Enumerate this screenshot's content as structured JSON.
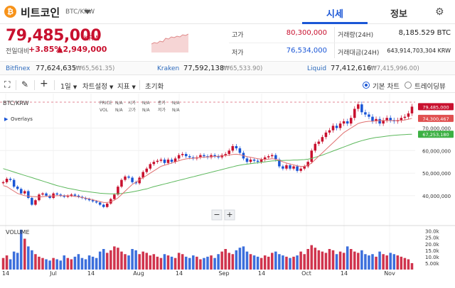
{
  "header": {
    "coin_symbol_glyph": "₿",
    "coin_name": "비트코인",
    "coin_pair": "BTC/KRW",
    "tabs": [
      {
        "label": "시세",
        "active": true
      },
      {
        "label": "정보",
        "active": false
      }
    ],
    "accent": "#1a56d6"
  },
  "summary": {
    "price": "79,485,000",
    "unit": "KRW",
    "change_label": "전일대비",
    "change_pct": "+3.85%",
    "change_abs": "▲2,949,000",
    "up_color": "#c8102e",
    "down_color": "#1a56d6",
    "stats": [
      {
        "label": "고가",
        "value": "80,300,000",
        "color": "#c8102e"
      },
      {
        "label": "저가",
        "value": "76,534,000",
        "color": "#1a56d6"
      },
      {
        "label": "거래량(24H)",
        "value": "8,185.529 BTC",
        "color": "#222"
      },
      {
        "label": "거래대금(24H)",
        "value": "643,914,703,304 KRW",
        "color": "#222"
      }
    ]
  },
  "exchanges": [
    {
      "name": "Bitfinex",
      "value": "77,624,635",
      "krw": "(₩65,561.35)"
    },
    {
      "name": "Kraken",
      "value": "77,592,138",
      "krw": "(₩65,533.90)"
    },
    {
      "name": "Liquid",
      "value": "77,412,616",
      "krw": "(₩7,415,996.00)"
    }
  ],
  "toolbar": {
    "interval": "1일",
    "settings": "차트설정",
    "indicators": "지표",
    "reset": "초기화",
    "modes": [
      {
        "label": "기본 차트",
        "selected": true
      },
      {
        "label": "트레이딩뷰",
        "selected": false
      }
    ]
  },
  "chart": {
    "symbol": "BTC/KRW",
    "overlays_label": "Overlays",
    "ohlc": {
      "price_label": "PRICE",
      "price": "N/A",
      "open_label": "시가",
      "open": "N/A",
      "close_label": "종가",
      "close": "N/A",
      "vol_label": "VOL",
      "vol": "N/A",
      "high_label": "고가",
      "high": "N/A",
      "low_label": "저가",
      "low": "N/A"
    },
    "volume_label": "VOLUME",
    "zoom_out": "−",
    "zoom_in": "+",
    "price_axis_ticks": [
      "70,000,000",
      "60,000,000",
      "50,000,000",
      "40,000,000"
    ],
    "volume_axis_ticks": [
      "30.0k",
      "25.0k",
      "20.0k",
      "15.0k",
      "10.0k",
      "5.00k"
    ],
    "x_axis_labels": [
      "14",
      "Jul",
      "14",
      "Aug",
      "14",
      "Sep",
      "14",
      "Oct",
      "14",
      "Nov"
    ],
    "badges": [
      {
        "text": "79,485,000",
        "color": "#c8102e"
      },
      {
        "text": "74,300,467",
        "color": "#e05050"
      },
      {
        "text": "67,253,180",
        "color": "#3cb043"
      }
    ],
    "up_color": "#c8102e",
    "down_color": "#1a56d6",
    "ma_short_color": "#e07070",
    "ma_long_color": "#5cb85c"
  },
  "chart_data": {
    "type": "candlestick",
    "symbol": "BTC/KRW",
    "x_labels": [
      "14",
      "Jul",
      "14",
      "Aug",
      "14",
      "Sep",
      "14",
      "Oct",
      "14",
      "Nov"
    ],
    "price_ticks": [
      70000000,
      60000000,
      50000000,
      40000000
    ],
    "price_range": [
      28000000,
      84000000
    ],
    "volume_range": [
      0,
      32000
    ],
    "close": [
      46000000,
      47500000,
      47000000,
      44000000,
      43000000,
      41000000,
      42000000,
      39000000,
      36000000,
      38000000,
      40500000,
      41000000,
      40000000,
      39000000,
      41000000,
      40500000,
      40000000,
      39500000,
      40000000,
      40500000,
      40000000,
      39500000,
      39000000,
      38500000,
      38000000,
      37500000,
      37000000,
      36000000,
      35000000,
      36500000,
      38500000,
      40500000,
      44000000,
      47000000,
      48500000,
      48000000,
      46000000,
      45500000,
      48000000,
      50500000,
      52000000,
      54000000,
      55000000,
      55500000,
      56000000,
      54500000,
      56000000,
      55000000,
      56500000,
      58000000,
      58500000,
      57500000,
      57000000,
      56500000,
      57000000,
      58000000,
      57500000,
      57000000,
      58000000,
      57500000,
      57000000,
      58000000,
      58500000,
      60000000,
      62000000,
      61000000,
      59000000,
      56500000,
      55000000,
      56000000,
      55500000,
      55000000,
      56000000,
      57000000,
      57500000,
      58000000,
      56000000,
      53000000,
      52000000,
      53500000,
      52000000,
      53000000,
      51000000,
      52000000,
      53000000,
      55000000,
      60000000,
      63000000,
      64000000,
      66000000,
      68000000,
      69000000,
      71000000,
      70000000,
      72000000,
      73000000,
      72000000,
      74500000,
      78500000,
      80500000,
      77000000,
      76000000,
      75000000,
      73000000,
      74000000,
      72000000,
      73500000,
      74500000,
      73500000,
      73000000,
      73500000,
      74500000,
      75000000,
      76500000,
      79485000
    ],
    "ma_short": [
      44500000,
      44000000,
      43000000,
      42000000,
      41000000,
      40500000,
      40000000,
      39800000,
      39600000,
      39500000,
      39400000,
      39500000,
      39700000,
      39800000,
      39900000,
      40000000,
      40000000,
      40000000,
      40000000,
      39900000,
      39700000,
      39500000,
      39200000,
      38900000,
      38600000,
      38200000,
      37800000,
      37400000,
      37000000,
      37000000,
      37300000,
      38000000,
      39000000,
      40500000,
      42000000,
      43500000,
      45000000,
      46000000,
      47000000,
      48000000,
      49000000,
      50000000,
      51000000,
      52000000,
      53000000,
      53500000,
      54000000,
      54500000,
      55000000,
      55500000,
      56000000,
      56300000,
      56500000,
      56600000,
      56800000,
      57000000,
      57100000,
      57200000,
      57300000,
      57400000,
      57500000,
      57600000,
      57800000,
      58000000,
      58300000,
      58400000,
      58200000,
      57800000,
      57300000,
      57000000,
      56700000,
      56400000,
      56200000,
      56100000,
      56200000,
      56400000,
      56200000,
      55700000,
      55000000,
      54500000,
      54000000,
      53700000,
      53200000,
      53000000,
      53000000,
      53500000,
      54500000,
      56000000,
      57500000,
      59000000,
      60500000,
      62000000,
      63500000,
      65000000,
      66500000,
      68000000,
      69000000,
      70000000,
      71000000,
      72000000,
      72500000,
      72800000,
      73000000,
      73000000,
      73200000,
      73300000,
      73300000,
      73300000,
      73300000,
      73300000,
      73300000,
      73400000,
      73600000,
      73900000,
      74300467
    ],
    "ma_long": [
      52000000,
      51500000,
      51000000,
      50500000,
      50000000,
      49500000,
      49000000,
      48500000,
      48000000,
      47500000,
      47000000,
      46500000,
      46000000,
      45500000,
      45000000,
      44500000,
      44100000,
      43700000,
      43300000,
      43000000,
      42700000,
      42400000,
      42100000,
      41900000,
      41700000,
      41500000,
      41300000,
      41100000,
      41000000,
      40900000,
      40800000,
      40800000,
      40900000,
      41000000,
      41200000,
      41400000,
      41700000,
      42000000,
      42300000,
      42700000,
      43000000,
      43500000,
      44000000,
      44400000,
      44800000,
      45200000,
      45600000,
      46000000,
      46400000,
      46800000,
      47200000,
      47600000,
      48000000,
      48400000,
      48800000,
      49200000,
      49600000,
      50000000,
      50400000,
      50800000,
      51200000,
      51600000,
      52000000,
      52400000,
      52800000,
      53200000,
      53500000,
      53800000,
      54000000,
      54200000,
      54400000,
      54600000,
      54800000,
      55000000,
      55200000,
      55400000,
      55500000,
      55600000,
      55600000,
      55700000,
      55700000,
      55800000,
      55800000,
      55900000,
      56000000,
      56200000,
      56500000,
      57000000,
      57500000,
      58000000,
      58600000,
      59200000,
      59800000,
      60400000,
      61000000,
      61600000,
      62200000,
      62800000,
      63400000,
      63900000,
      64400000,
      64800000,
      65200000,
      65500000,
      65800000,
      66000000,
      66200000,
      66400000,
      66600000,
      66800000,
      66900000,
      67000000,
      67100000,
      67200000,
      67253180
    ],
    "volume": [
      9000,
      11000,
      8000,
      14000,
      13000,
      31000,
      24000,
      18000,
      15000,
      12000,
      10000,
      9000,
      8000,
      7000,
      9000,
      8000,
      7000,
      11000,
      9000,
      8000,
      10000,
      12000,
      9000,
      8000,
      11000,
      10000,
      9000,
      14000,
      16000,
      13000,
      15000,
      18000,
      17000,
      14000,
      12000,
      11000,
      16000,
      15000,
      12000,
      14000,
      13000,
      11000,
      12000,
      10000,
      9000,
      12000,
      11000,
      10000,
      9000,
      13000,
      12000,
      10000,
      9000,
      11000,
      10000,
      8000,
      9000,
      10000,
      11000,
      9000,
      12000,
      14000,
      16000,
      13000,
      12000,
      15000,
      17000,
      18000,
      14000,
      12000,
      11000,
      10000,
      9000,
      11000,
      10000,
      13000,
      14000,
      12000,
      11000,
      10000,
      9000,
      10000,
      11000,
      14000,
      12000,
      16000,
      19000,
      17000,
      15000,
      14000,
      13000,
      16000,
      15000,
      12000,
      14000,
      13000,
      18000,
      16000,
      14000,
      13000,
      15000,
      12000,
      11000,
      12000,
      10000,
      14000,
      12000,
      11000,
      13000,
      12000,
      11000,
      10000,
      9000,
      8000,
      5000
    ]
  }
}
